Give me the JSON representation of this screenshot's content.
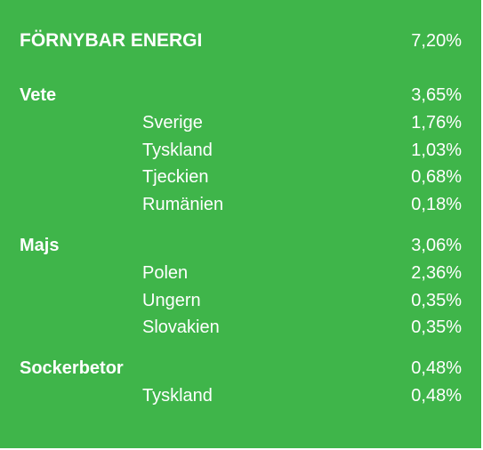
{
  "title": {
    "label": "FÖRNYBAR ENERGI",
    "value": "7,20%"
  },
  "groups": [
    {
      "label": "Vete",
      "value": "3,65%",
      "items": [
        {
          "label": "Sverige",
          "value": "1,76%"
        },
        {
          "label": "Tyskland",
          "value": "1,03%"
        },
        {
          "label": "Tjeckien",
          "value": "0,68%"
        },
        {
          "label": "Rumänien",
          "value": "0,18%"
        }
      ]
    },
    {
      "label": "Majs",
      "value": "3,06%",
      "items": [
        {
          "label": "Polen",
          "value": "2,36%"
        },
        {
          "label": "Ungern",
          "value": "0,35%"
        },
        {
          "label": "Slovakien",
          "value": "0,35%"
        }
      ]
    },
    {
      "label": "Sockerbetor",
      "value": "0,48%",
      "items": [
        {
          "label": "Tyskland",
          "value": "0,48%"
        }
      ]
    }
  ],
  "colors": {
    "background": "#3fb54a",
    "text": "#ffffff"
  }
}
